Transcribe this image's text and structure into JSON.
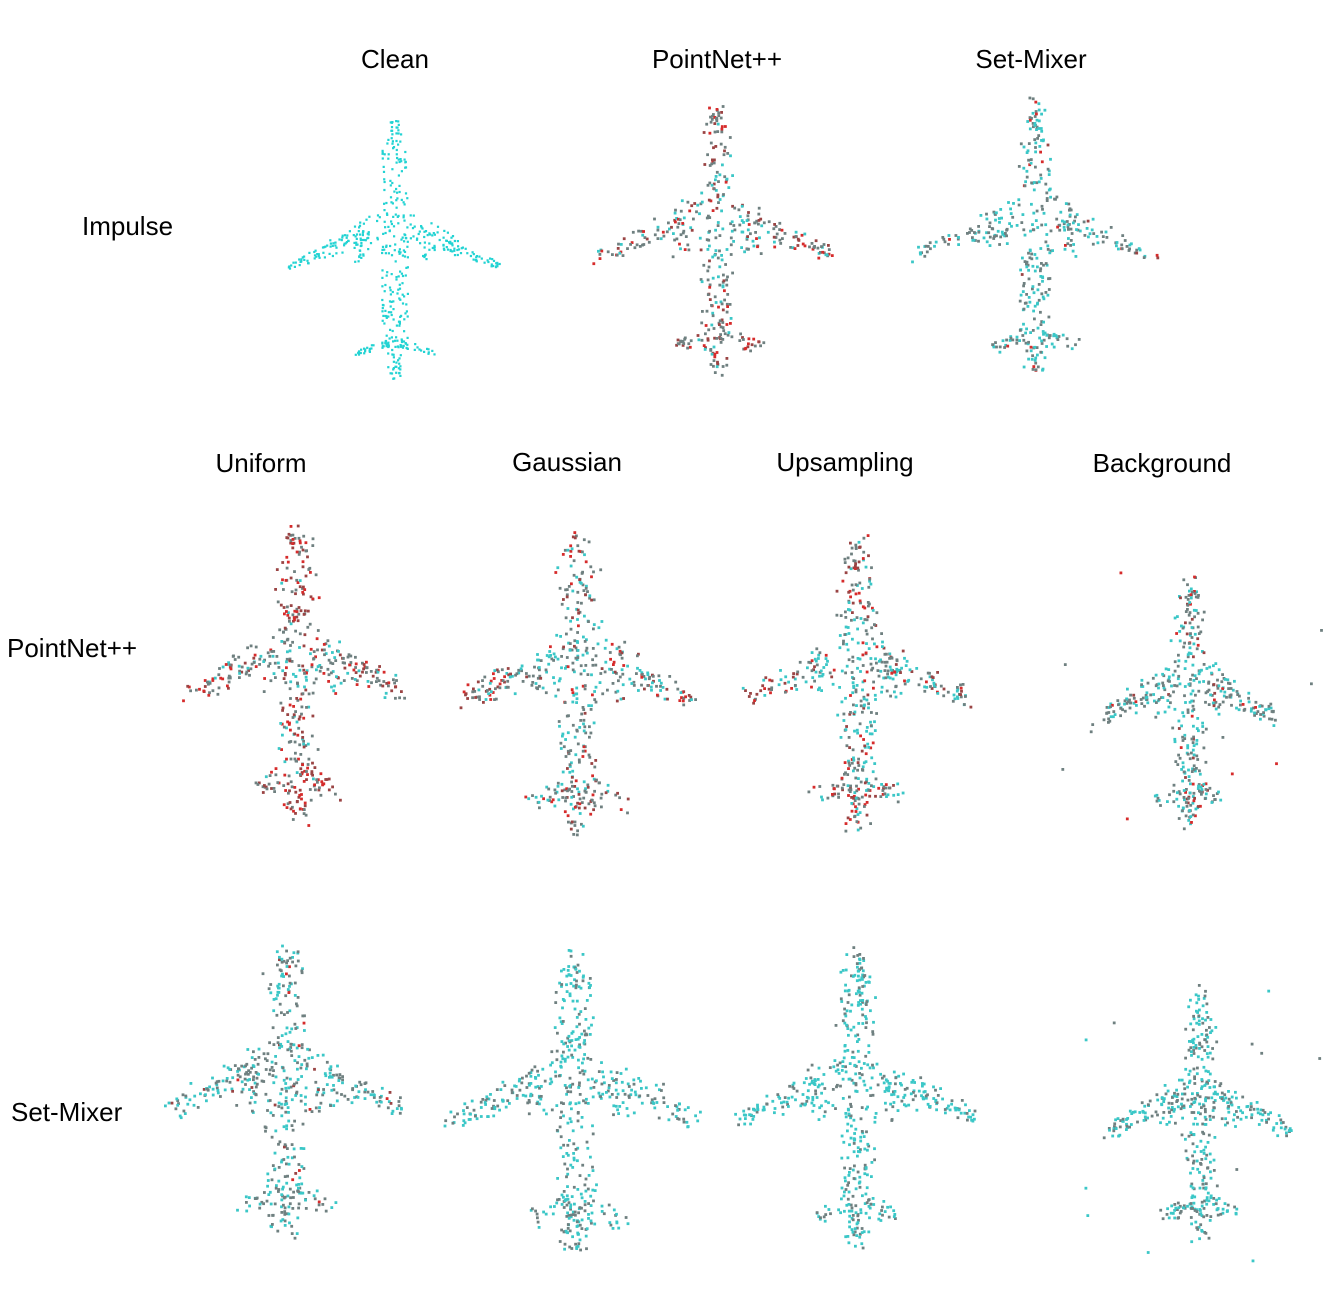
{
  "top_row": {
    "row_label": "Impulse",
    "columns": [
      "Clean",
      "PointNet++",
      "Set-Mixer"
    ]
  },
  "bottom_grid": {
    "columns": [
      "Uniform",
      "Gaussian",
      "Upsampling",
      "Background"
    ],
    "rows": [
      "PointNet++",
      "Set-Mixer"
    ]
  },
  "colors": {
    "clean": "#22d3d3",
    "correct_cyan": "#3bc7c7",
    "neutral_gray": "#6f8080",
    "dark_red": "#9a4444",
    "red": "#d62b2b"
  },
  "panels": [
    {
      "name": "impulse-clean",
      "row": "Impulse",
      "column": "Clean",
      "red_fraction": 0.0,
      "gray_fraction": 0.0,
      "clean": true
    },
    {
      "name": "impulse-pointnet",
      "row": "Impulse",
      "column": "PointNet++",
      "red_fraction": 0.3,
      "gray_fraction": 0.55
    },
    {
      "name": "impulse-setmixer",
      "row": "Impulse",
      "column": "Set-Mixer",
      "red_fraction": 0.05,
      "gray_fraction": 0.45
    },
    {
      "name": "pointnet-uniform",
      "row": "PointNet++",
      "column": "Uniform",
      "red_fraction": 0.45,
      "gray_fraction": 0.45
    },
    {
      "name": "pointnet-gaussian",
      "row": "PointNet++",
      "column": "Gaussian",
      "red_fraction": 0.3,
      "gray_fraction": 0.4
    },
    {
      "name": "pointnet-upsampling",
      "row": "PointNet++",
      "column": "Upsampling",
      "red_fraction": 0.3,
      "gray_fraction": 0.35
    },
    {
      "name": "pointnet-background",
      "row": "PointNet++",
      "column": "Background",
      "red_fraction": 0.12,
      "gray_fraction": 0.45
    },
    {
      "name": "setmixer-uniform",
      "row": "Set-Mixer",
      "column": "Uniform",
      "red_fraction": 0.08,
      "gray_fraction": 0.5
    },
    {
      "name": "setmixer-gaussian",
      "row": "Set-Mixer",
      "column": "Gaussian",
      "red_fraction": 0.0,
      "gray_fraction": 0.35
    },
    {
      "name": "setmixer-upsampling",
      "row": "Set-Mixer",
      "column": "Upsampling",
      "red_fraction": 0.0,
      "gray_fraction": 0.3
    },
    {
      "name": "setmixer-background",
      "row": "Set-Mixer",
      "column": "Background",
      "red_fraction": 0.0,
      "gray_fraction": 0.35
    }
  ]
}
